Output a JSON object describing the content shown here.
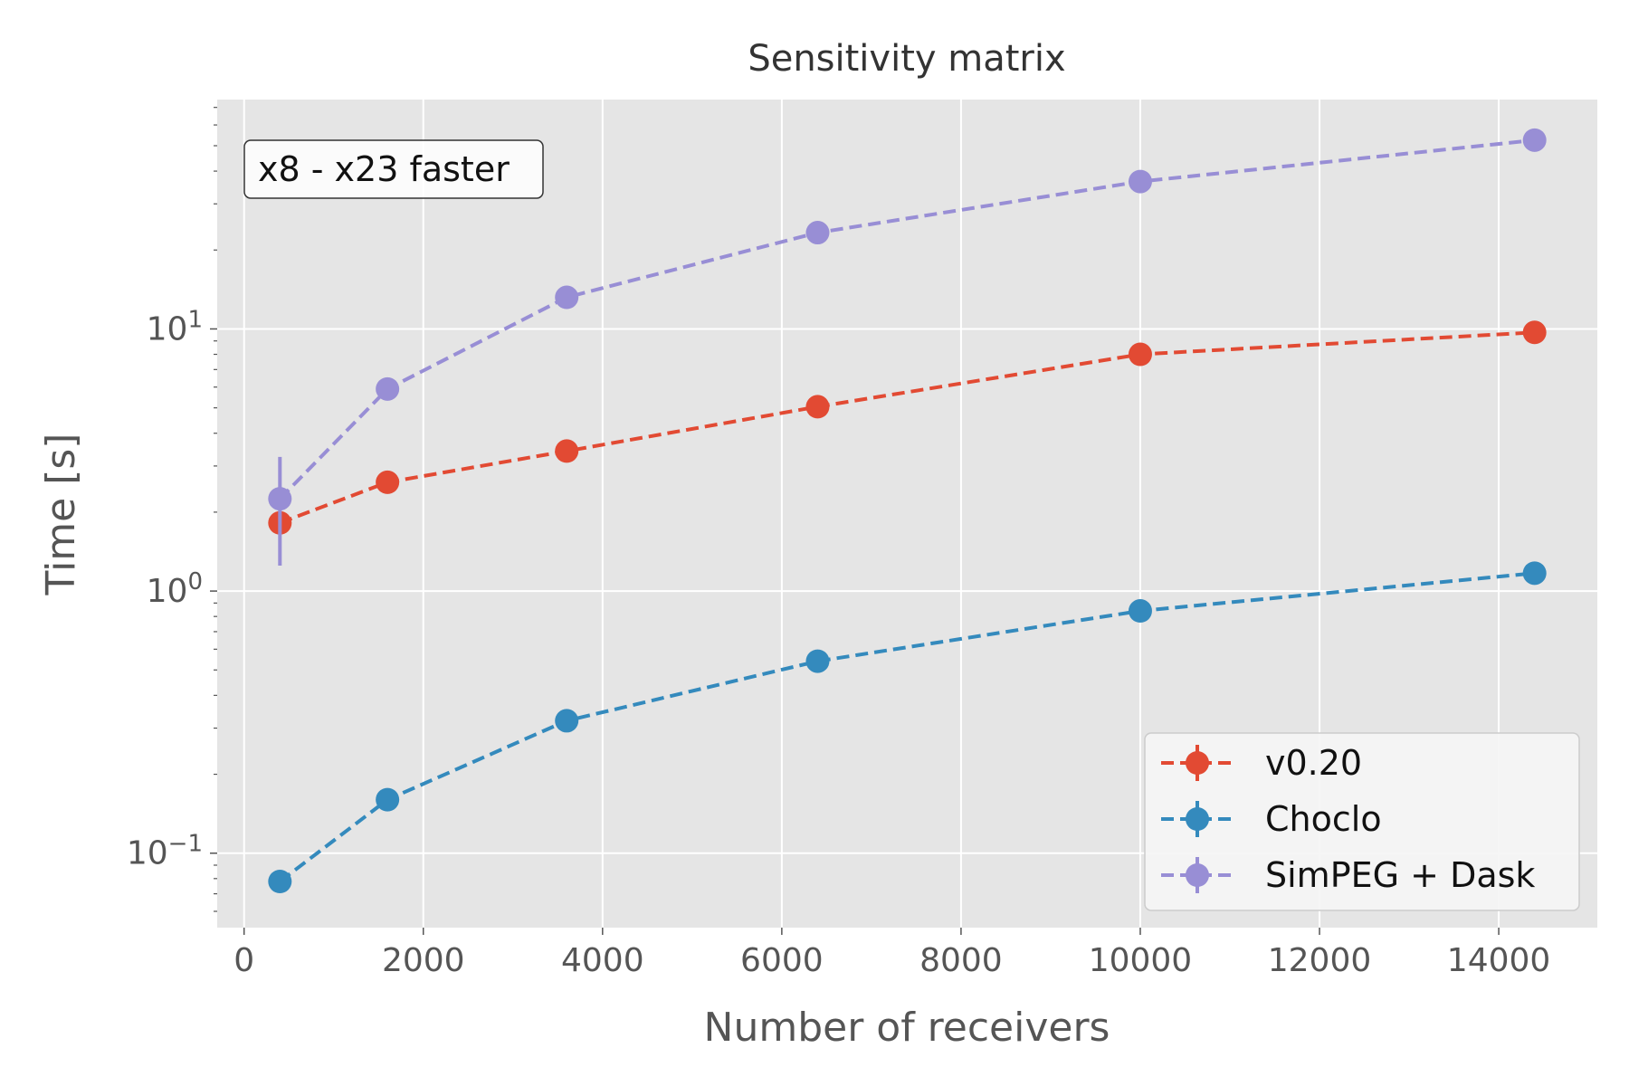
{
  "chart_data": {
    "type": "line",
    "title": "Sensitivity matrix",
    "xlabel": "Number of receivers",
    "ylabel": "Time [s]",
    "xlim": [
      -300,
      15100
    ],
    "ylim": [
      0.052,
      75
    ],
    "yscale": "log",
    "grid": true,
    "legend_position": "bottom-right",
    "annotation": "x8 - x23 faster",
    "x_ticks": [
      0,
      2000,
      4000,
      6000,
      8000,
      10000,
      12000,
      14000
    ],
    "x_tick_labels": [
      "0",
      "2000",
      "4000",
      "6000",
      "8000",
      "10000",
      "12000",
      "14000"
    ],
    "y_ticks": [
      {
        "value": 10,
        "base": "10",
        "exp": "1"
      },
      {
        "value": 1,
        "base": "10",
        "exp": "0"
      },
      {
        "value": 0.1,
        "base": "10",
        "exp": "−1"
      }
    ],
    "x": [
      400,
      1600,
      3600,
      6400,
      10000,
      14400
    ],
    "series": [
      {
        "name": "v0.20",
        "color": "#E24A33",
        "values": [
          1.82,
          2.6,
          3.42,
          5.05,
          8.0,
          9.7
        ]
      },
      {
        "name": "Choclo",
        "color": "#348ABD",
        "values": [
          0.078,
          0.16,
          0.32,
          0.54,
          0.84,
          1.17
        ]
      },
      {
        "name": "SimPEG + Dask",
        "color": "#988ED5",
        "values": [
          2.25,
          5.9,
          13.2,
          23.3,
          36.5,
          52.5
        ],
        "error_low": [
          1.25,
          null,
          null,
          null,
          null,
          null
        ],
        "error_high": [
          3.25,
          null,
          null,
          null,
          null,
          null
        ]
      }
    ]
  }
}
